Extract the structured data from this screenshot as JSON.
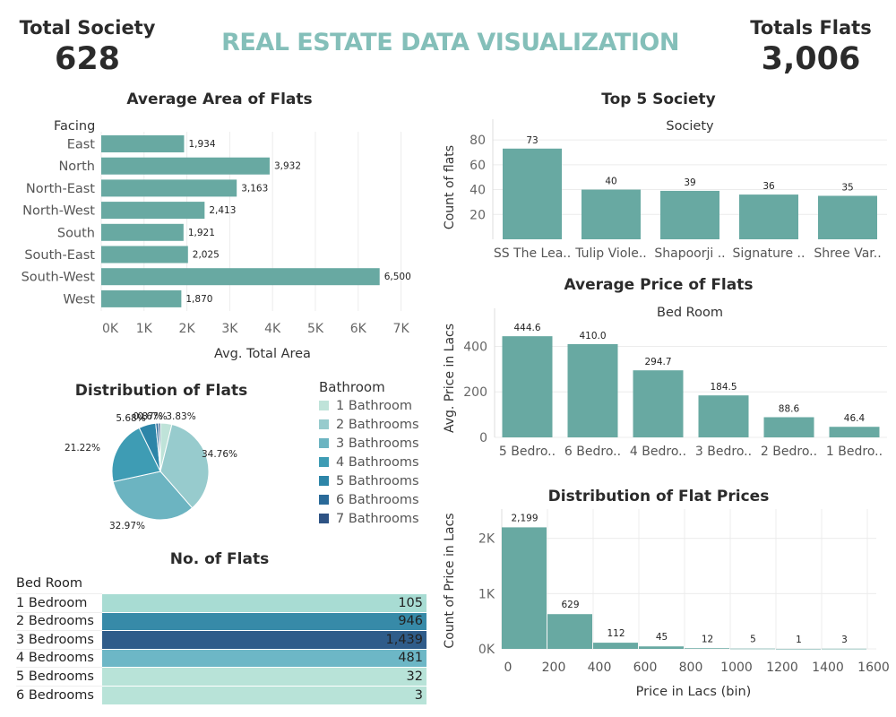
{
  "kpis": {
    "total_society_label": "Total Society",
    "total_society_value": "628",
    "total_flats_label": "Totals Flats",
    "total_flats_value": "3,006"
  },
  "main_title": "REAL ESTATE DATA VISUALIZATION",
  "colors": {
    "teal": "#68a9a2",
    "title_teal": "#84bfb9"
  },
  "chart_data": [
    {
      "id": "avg_area",
      "type": "bar",
      "orientation": "horizontal",
      "title": "Average Area of Flats",
      "row_header": "Facing",
      "xlabel": "Avg. Total Area",
      "categories": [
        "East",
        "North",
        "North-East",
        "North-West",
        "South",
        "South-East",
        "South-West",
        "West"
      ],
      "values": [
        1934,
        3932,
        3163,
        2413,
        1921,
        2025,
        6500,
        1870
      ],
      "data_labels": [
        "1,934",
        "3,932",
        "3,163",
        "2,413",
        "1,921",
        "2,025",
        "6,500",
        "1,870"
      ],
      "x_ticks": [
        "0K",
        "1K",
        "2K",
        "3K",
        "4K",
        "5K",
        "6K",
        "7K"
      ],
      "xlim": [
        0,
        7000
      ],
      "grid": true
    },
    {
      "id": "top5",
      "type": "bar",
      "title": "Top 5 Society",
      "column_header": "Society",
      "ylabel": "Count of flats",
      "categories": [
        "SS The Lea..",
        "Tulip Viole..",
        "Shapoorji ..",
        "Signature ..",
        "Shree Var.."
      ],
      "values": [
        73,
        40,
        39,
        36,
        35
      ],
      "y_ticks": [
        "20",
        "40",
        "60",
        "80"
      ],
      "ylim": [
        0,
        88
      ],
      "grid": true
    },
    {
      "id": "avg_price",
      "type": "bar",
      "title": "Average Price of Flats",
      "column_header": "Bed Room",
      "ylabel": "Avg. Price in Lacs",
      "categories": [
        "5 Bedro..",
        "6 Bedro..",
        "4 Bedro..",
        "3 Bedro..",
        "2 Bedro..",
        "1 Bedro.."
      ],
      "values": [
        444.6,
        410.0,
        294.7,
        184.5,
        88.6,
        46.4
      ],
      "data_labels": [
        "444.6",
        "410.0",
        "294.7",
        "184.5",
        "88.6",
        "46.4"
      ],
      "y_ticks": [
        "0",
        "200",
        "400"
      ],
      "ylim": [
        0,
        520
      ],
      "grid": true
    },
    {
      "id": "price_hist",
      "type": "bar",
      "title": "Distribution of Flat Prices",
      "xlabel": "Price in Lacs (bin)",
      "ylabel": "Count of Price in Lacs",
      "x": [
        0,
        200,
        400,
        600,
        800,
        1000,
        1200,
        1400
      ],
      "bin_width": 200,
      "values": [
        2199,
        629,
        112,
        45,
        12,
        5,
        1,
        3
      ],
      "data_labels": [
        "2,199",
        "629",
        "112",
        "45",
        "12",
        "5",
        "1",
        "3"
      ],
      "x_ticks": [
        "0",
        "200",
        "400",
        "600",
        "800",
        "1000",
        "1200",
        "1400",
        "1600"
      ],
      "y_ticks": [
        "0K",
        "1K",
        "2K"
      ],
      "xlim": [
        0,
        1600
      ],
      "ylim": [
        0,
        2400
      ],
      "grid": true
    },
    {
      "id": "bath_pie",
      "type": "pie",
      "title": "Distribution of Flats",
      "legend_title": "Bathroom",
      "legend_position": "right",
      "categories": [
        "1 Bathroom",
        "2 Bathrooms",
        "3 Bathrooms",
        "4 Bathrooms",
        "5 Bathrooms",
        "6 Bathrooms",
        "7 Bathrooms"
      ],
      "values": [
        3.83,
        34.76,
        32.97,
        21.22,
        5.68,
        0.87,
        0.67
      ],
      "slice_labels": [
        "3.83%",
        "34.76%",
        "32.97%",
        "21.22%",
        "5.68%",
        "0.87%",
        "0.67%"
      ],
      "colors": [
        "#bfe3d9",
        "#97cbcd",
        "#6cb4c1",
        "#3e9cb4",
        "#2d85a8",
        "#2a6a99",
        "#2e5384"
      ]
    },
    {
      "id": "no_flats",
      "type": "table",
      "title": "No. of Flats",
      "row_header": "Bed Room",
      "categories": [
        "1 Bedroom",
        "2 Bedrooms",
        "3 Bedrooms",
        "4 Bedrooms",
        "5 Bedrooms",
        "6 Bedrooms"
      ],
      "values": [
        105,
        946,
        1439,
        481,
        32,
        3
      ],
      "data_labels": [
        "105",
        "946",
        "1,439",
        "481",
        "32",
        "3"
      ],
      "colors": [
        "#a8dcd3",
        "#378aa8",
        "#2f5c8a",
        "#6db7c6",
        "#b8e3d8",
        "#b8e3d8"
      ]
    }
  ]
}
